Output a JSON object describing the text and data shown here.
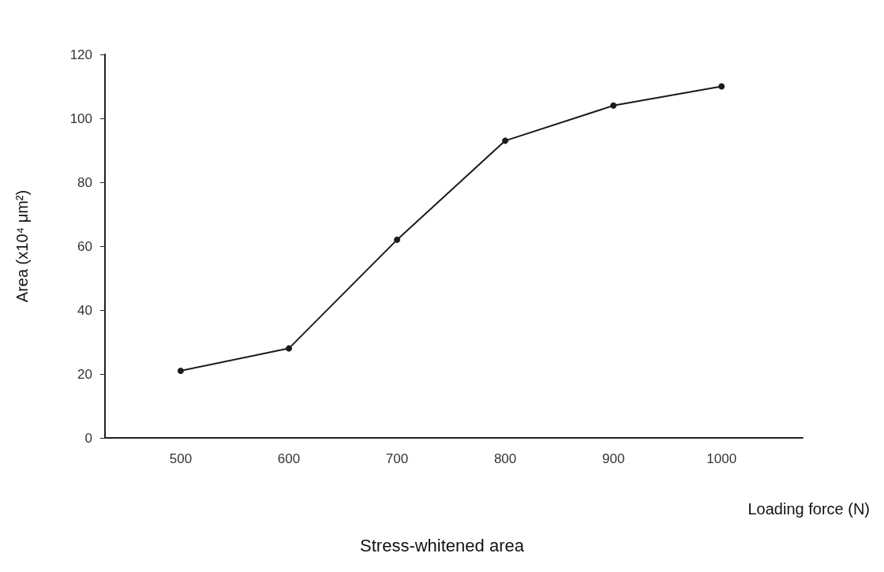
{
  "chart_data": {
    "type": "line",
    "title": "Stress-whitened area",
    "xlabel": "Loading force (N)",
    "ylabel": "Area (x10⁴ μm²)",
    "x": [
      500,
      600,
      700,
      800,
      900,
      1000
    ],
    "series": [
      {
        "color": "#1a1a1a",
        "values": [
          21,
          28,
          62,
          93,
          104,
          110
        ]
      }
    ],
    "xlim": [
      430,
      1075
    ],
    "xticks": [
      500,
      600,
      700,
      800,
      900,
      1000
    ],
    "ylim": [
      0,
      120
    ],
    "yticks": [
      0,
      20,
      40,
      60,
      80,
      100,
      120
    ],
    "grid": false,
    "marker": "circle",
    "line_style": "solid"
  }
}
